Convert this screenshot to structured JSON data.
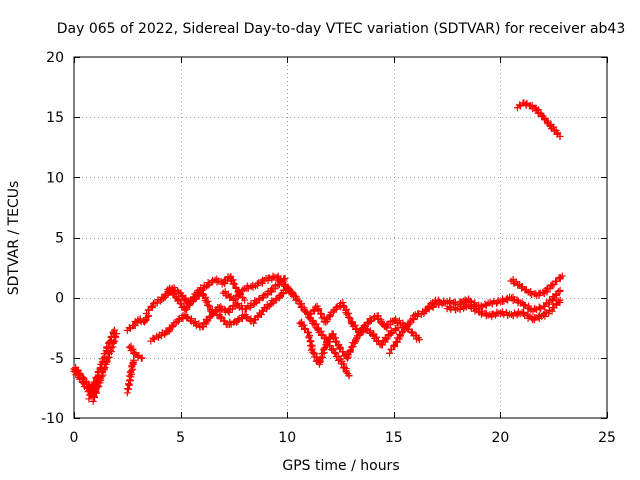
{
  "chart_data": {
    "type": "scatter",
    "title": "Day 065 of 2022, Sidereal Day-to-day VTEC variation (SDTVAR) for receiver ab43",
    "xlabel": "GPS time / hours",
    "ylabel": "SDTVAR / TECUs",
    "xlim": [
      0,
      25
    ],
    "ylim": [
      -10,
      20
    ],
    "xticks": [
      0,
      5,
      10,
      15,
      20,
      25
    ],
    "yticks": [
      -10,
      -5,
      0,
      5,
      10,
      15,
      20
    ],
    "grid": true,
    "marker": "plus",
    "color": "#ff0000",
    "series": [
      {
        "name": "SDTVAR",
        "description_points": "estimated traces read from the plot",
        "segments": [
          [
            [
              0.0,
              -6.0
            ],
            [
              0.2,
              -6.5
            ],
            [
              0.4,
              -7.0
            ],
            [
              0.6,
              -7.5
            ],
            [
              0.8,
              -8.0
            ],
            [
              1.0,
              -7.6
            ],
            [
              1.1,
              -7.0
            ]
          ],
          [
            [
              0.0,
              -5.8
            ],
            [
              0.2,
              -6.2
            ],
            [
              0.4,
              -6.6
            ],
            [
              0.6,
              -7.2
            ],
            [
              0.8,
              -7.5
            ],
            [
              1.0,
              -7.2
            ]
          ],
          [
            [
              0.7,
              -8.3
            ],
            [
              0.9,
              -7.5
            ],
            [
              1.1,
              -6.5
            ],
            [
              1.3,
              -5.5
            ],
            [
              1.5,
              -4.5
            ],
            [
              1.7,
              -3.5
            ],
            [
              1.9,
              -2.7
            ]
          ],
          [
            [
              0.9,
              -8.5
            ],
            [
              1.1,
              -7.5
            ],
            [
              1.3,
              -6.5
            ],
            [
              1.5,
              -5.5
            ],
            [
              1.7,
              -4.5
            ],
            [
              1.9,
              -3.5
            ],
            [
              2.0,
              -3.0
            ]
          ],
          [
            [
              2.5,
              -7.8
            ],
            [
              2.6,
              -7.0
            ],
            [
              2.7,
              -6.0
            ],
            [
              2.8,
              -5.2
            ]
          ],
          [
            [
              2.5,
              -2.6
            ],
            [
              2.8,
              -2.4
            ],
            [
              3.0,
              -1.8
            ],
            [
              3.3,
              -2.0
            ],
            [
              3.5,
              -1.5
            ]
          ],
          [
            [
              2.6,
              -4.0
            ],
            [
              2.9,
              -4.8
            ],
            [
              3.2,
              -5.0
            ]
          ],
          [
            [
              3.4,
              -1.2
            ],
            [
              3.8,
              -0.5
            ],
            [
              4.2,
              0.0
            ],
            [
              4.6,
              0.8
            ],
            [
              5.0,
              0.3
            ],
            [
              5.4,
              -0.5
            ],
            [
              5.8,
              0.5
            ],
            [
              6.2,
              1.0
            ],
            [
              6.6,
              1.5
            ],
            [
              7.0,
              1.2
            ],
            [
              7.3,
              1.8
            ],
            [
              7.7,
              0.5
            ],
            [
              8.0,
              -0.2
            ]
          ],
          [
            [
              3.6,
              -3.5
            ],
            [
              4.0,
              -3.2
            ],
            [
              4.4,
              -2.8
            ],
            [
              4.8,
              -2.0
            ],
            [
              5.2,
              -1.5
            ],
            [
              5.6,
              -2.0
            ],
            [
              6.0,
              -2.5
            ],
            [
              6.4,
              -1.5
            ],
            [
              6.8,
              -0.8
            ],
            [
              7.2,
              -1.2
            ],
            [
              7.6,
              -0.5
            ],
            [
              8.0,
              -1.0
            ],
            [
              8.4,
              -0.5
            ],
            [
              8.8,
              0.0
            ],
            [
              9.2,
              0.5
            ],
            [
              9.6,
              1.2
            ],
            [
              9.9,
              1.6
            ]
          ],
          [
            [
              4.4,
              0.8
            ],
            [
              4.8,
              0.0
            ],
            [
              5.2,
              -1.0
            ],
            [
              5.6,
              -0.2
            ],
            [
              6.0,
              0.5
            ],
            [
              6.4,
              -1.0
            ],
            [
              6.8,
              -1.5
            ],
            [
              7.2,
              -2.2
            ],
            [
              7.6,
              -2.0
            ],
            [
              8.0,
              -1.5
            ],
            [
              8.4,
              -2.0
            ],
            [
              8.8,
              -1.2
            ],
            [
              9.2,
              -0.5
            ],
            [
              9.6,
              0.0
            ],
            [
              10.0,
              0.8
            ],
            [
              10.3,
              0.2
            ]
          ],
          [
            [
              7.0,
              0.5
            ],
            [
              7.5,
              -0.2
            ],
            [
              8.0,
              0.8
            ],
            [
              8.5,
              1.0
            ],
            [
              9.0,
              1.5
            ],
            [
              9.5,
              1.8
            ],
            [
              9.8,
              1.2
            ],
            [
              10.2,
              0.5
            ],
            [
              10.6,
              -0.5
            ],
            [
              11.0,
              -1.5
            ],
            [
              11.4,
              -2.5
            ],
            [
              11.8,
              -3.5
            ],
            [
              12.2,
              -4.5
            ],
            [
              12.6,
              -5.5
            ],
            [
              12.9,
              -6.5
            ]
          ],
          [
            [
              10.6,
              -2.0
            ],
            [
              11.0,
              -3.0
            ],
            [
              11.2,
              -4.5
            ],
            [
              11.5,
              -5.5
            ],
            [
              11.8,
              -4.0
            ],
            [
              12.1,
              -3.0
            ],
            [
              12.4,
              -4.0
            ],
            [
              12.8,
              -5.0
            ],
            [
              13.2,
              -3.5
            ],
            [
              13.6,
              -2.5
            ],
            [
              14.0,
              -3.0
            ],
            [
              14.4,
              -4.0
            ],
            [
              14.8,
              -3.0
            ],
            [
              15.2,
              -2.5
            ]
          ],
          [
            [
              11.0,
              -1.5
            ],
            [
              11.4,
              -0.8
            ],
            [
              11.8,
              -2.0
            ],
            [
              12.2,
              -1.0
            ],
            [
              12.6,
              -0.5
            ],
            [
              13.0,
              -2.0
            ],
            [
              13.4,
              -3.0
            ],
            [
              13.8,
              -2.0
            ],
            [
              14.2,
              -1.5
            ],
            [
              14.6,
              -2.5
            ],
            [
              15.0,
              -1.8
            ],
            [
              15.4,
              -2.2
            ],
            [
              15.8,
              -2.8
            ],
            [
              16.2,
              -3.5
            ]
          ],
          [
            [
              14.8,
              -4.5
            ],
            [
              15.1,
              -3.8
            ],
            [
              15.4,
              -2.8
            ],
            [
              15.7,
              -2.2
            ],
            [
              16.0,
              -1.5
            ],
            [
              16.4,
              -1.2
            ],
            [
              16.8,
              -0.5
            ],
            [
              17.1,
              -0.2
            ]
          ],
          [
            [
              16.5,
              -1.0
            ],
            [
              17.0,
              -0.6
            ],
            [
              17.5,
              -0.3
            ],
            [
              18.0,
              -0.5
            ],
            [
              18.5,
              -0.2
            ],
            [
              19.0,
              -0.8
            ],
            [
              19.5,
              -0.5
            ],
            [
              20.0,
              -0.3
            ],
            [
              20.5,
              0.0
            ],
            [
              21.0,
              -0.5
            ],
            [
              21.5,
              -1.0
            ],
            [
              22.0,
              -0.8
            ],
            [
              22.4,
              -0.2
            ],
            [
              22.8,
              0.6
            ]
          ],
          [
            [
              17.5,
              -0.8
            ],
            [
              18.0,
              -1.0
            ],
            [
              18.5,
              -0.6
            ],
            [
              19.0,
              -1.2
            ],
            [
              19.5,
              -1.5
            ],
            [
              20.0,
              -1.2
            ],
            [
              20.5,
              -1.5
            ],
            [
              21.0,
              -1.2
            ],
            [
              21.5,
              -1.8
            ],
            [
              22.0,
              -1.5
            ],
            [
              22.4,
              -1.0
            ],
            [
              22.8,
              -0.2
            ]
          ],
          [
            [
              20.5,
              1.5
            ],
            [
              20.9,
              1.0
            ],
            [
              21.3,
              0.5
            ],
            [
              21.7,
              0.2
            ],
            [
              22.1,
              0.5
            ],
            [
              22.5,
              1.2
            ],
            [
              22.9,
              1.8
            ]
          ],
          [
            [
              20.8,
              15.9
            ],
            [
              21.1,
              16.1
            ],
            [
              21.4,
              16.0
            ],
            [
              21.7,
              15.6
            ],
            [
              22.0,
              15.0
            ],
            [
              22.3,
              14.4
            ],
            [
              22.6,
              13.8
            ],
            [
              22.8,
              13.4
            ]
          ]
        ]
      }
    ]
  }
}
